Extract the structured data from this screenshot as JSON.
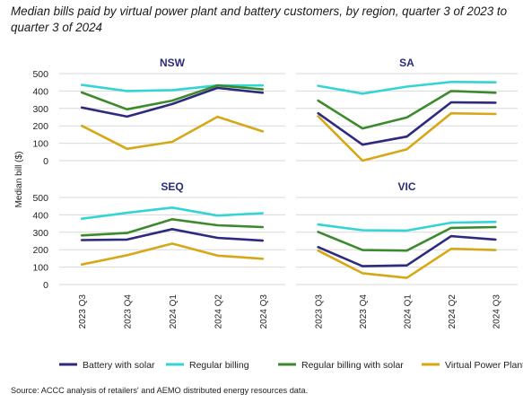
{
  "title": "Median bills paid by virtual power plant and battery customers, by region, quarter 3 of 2023 to quarter 3 of 2024",
  "source": "Source:   ACCC analysis of retailers' and AEMO distributed energy resources data.",
  "colors": {
    "Battery with solar": "#2e2a7e",
    "Regular billing": "#34d4d4",
    "Regular billing with solar": "#3d8a2e",
    "Virtual Power Plant": "#d6a817",
    "grid": "#d9d9d9"
  },
  "chart_data": [
    {
      "type": "line",
      "title": "NSW",
      "ylabel": "Median bill ($)",
      "xlabel": "",
      "categories": [
        "2023 Q3",
        "2023 Q4",
        "2024 Q1",
        "2024 Q2",
        "2024 Q3"
      ],
      "ylim": [
        0,
        500
      ],
      "yticks": [
        0,
        100,
        200,
        300,
        400,
        500
      ],
      "grid": true,
      "series": [
        {
          "name": "Battery with solar",
          "values": [
            305,
            253,
            325,
            418,
            390
          ]
        },
        {
          "name": "Regular billing",
          "values": [
            435,
            400,
            405,
            432,
            432
          ]
        },
        {
          "name": "Regular billing with solar",
          "values": [
            392,
            295,
            345,
            432,
            410
          ]
        },
        {
          "name": "Virtual Power Plant",
          "values": [
            200,
            68,
            108,
            252,
            168
          ]
        }
      ]
    },
    {
      "type": "line",
      "title": "SA",
      "ylabel": "",
      "xlabel": "",
      "categories": [
        "2023 Q3",
        "2023 Q4",
        "2024 Q1",
        "2024 Q2",
        "2024 Q3"
      ],
      "ylim": [
        0,
        500
      ],
      "yticks": [
        0,
        100,
        200,
        300,
        400,
        500
      ],
      "grid": true,
      "series": [
        {
          "name": "Battery with solar",
          "values": [
            272,
            92,
            138,
            335,
            333
          ]
        },
        {
          "name": "Regular billing",
          "values": [
            430,
            385,
            425,
            452,
            450
          ]
        },
        {
          "name": "Regular billing with solar",
          "values": [
            345,
            185,
            248,
            400,
            390
          ]
        },
        {
          "name": "Virtual Power Plant",
          "values": [
            255,
            0,
            65,
            272,
            268
          ]
        }
      ]
    },
    {
      "type": "line",
      "title": "SEQ",
      "ylabel": "",
      "xlabel": "",
      "categories": [
        "2023 Q3",
        "2023 Q4",
        "2024 Q1",
        "2024 Q2",
        "2024 Q3"
      ],
      "ylim": [
        0,
        500
      ],
      "yticks": [
        0,
        100,
        200,
        300,
        400,
        500
      ],
      "grid": true,
      "series": [
        {
          "name": "Battery with solar",
          "values": [
            255,
            258,
            318,
            268,
            252
          ]
        },
        {
          "name": "Regular billing",
          "values": [
            378,
            412,
            442,
            396,
            410
          ]
        },
        {
          "name": "Regular billing with solar",
          "values": [
            282,
            296,
            375,
            340,
            330
          ]
        },
        {
          "name": "Virtual Power Plant",
          "values": [
            115,
            168,
            235,
            166,
            148
          ]
        }
      ]
    },
    {
      "type": "line",
      "title": "VIC",
      "ylabel": "",
      "xlabel": "",
      "categories": [
        "2023 Q3",
        "2023 Q4",
        "2024 Q1",
        "2024 Q2",
        "2024 Q3"
      ],
      "ylim": [
        0,
        500
      ],
      "yticks": [
        0,
        100,
        200,
        300,
        400,
        500
      ],
      "grid": true,
      "series": [
        {
          "name": "Battery with solar",
          "values": [
            215,
            105,
            110,
            278,
            258
          ]
        },
        {
          "name": "Regular billing",
          "values": [
            345,
            312,
            310,
            355,
            360
          ]
        },
        {
          "name": "Regular billing with solar",
          "values": [
            302,
            198,
            195,
            325,
            330
          ]
        },
        {
          "name": "Virtual Power Plant",
          "values": [
            195,
            65,
            38,
            205,
            198
          ]
        }
      ]
    }
  ],
  "legend": {
    "position": "bottom",
    "items": [
      "Battery with solar",
      "Regular billing",
      "Regular billing with solar",
      "Virtual Power Plant"
    ]
  }
}
